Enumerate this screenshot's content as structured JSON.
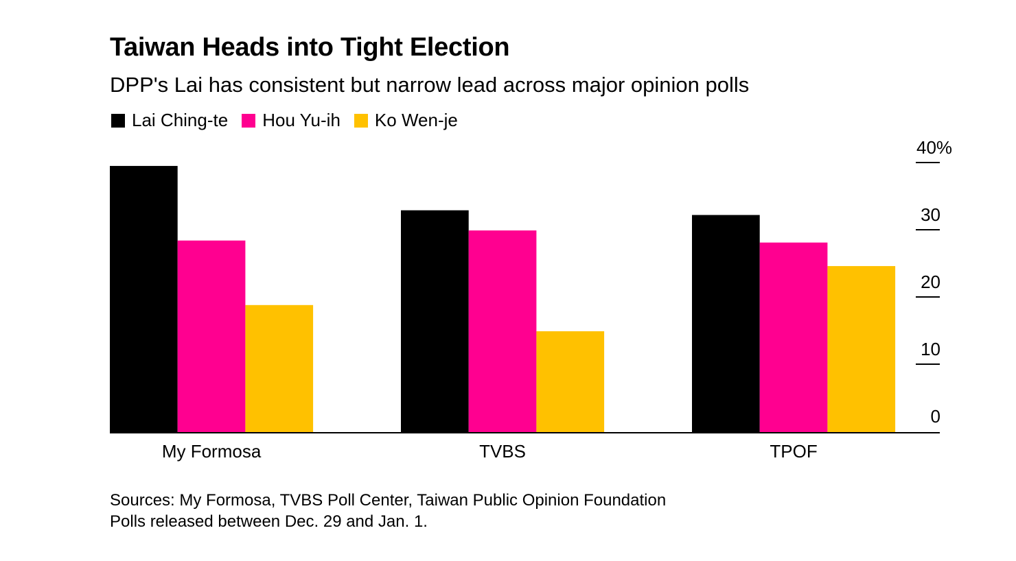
{
  "header": {
    "title": "Taiwan Heads into Tight Election",
    "subtitle": "DPP's Lai has consistent but narrow lead across major opinion polls"
  },
  "legend": {
    "items": [
      {
        "label": "Lai Ching-te",
        "color": "#000000"
      },
      {
        "label": "Hou Yu-ih",
        "color": "#ff0090"
      },
      {
        "label": "Ko Wen-je",
        "color": "#ffc100"
      }
    ]
  },
  "footer": {
    "sources": "Sources: My Formosa, TVBS Poll Center, Taiwan Public Opinion Foundation",
    "note": "Polls released between Dec. 29 and Jan. 1."
  },
  "chart_data": {
    "type": "bar",
    "categories": [
      "My Formosa",
      "TVBS",
      "TPOF"
    ],
    "series": [
      {
        "name": "Lai Ching-te",
        "color": "#000000",
        "values": [
          39.7,
          33.1,
          32.4
        ]
      },
      {
        "name": "Hou Yu-ih",
        "color": "#ff0090",
        "values": [
          28.6,
          30.1,
          28.3
        ]
      },
      {
        "name": "Ko Wen-je",
        "color": "#ffc100",
        "values": [
          19.0,
          15.1,
          24.8
        ]
      }
    ],
    "ylim": [
      0,
      40
    ],
    "yticks": [
      0,
      10,
      20,
      30,
      40
    ],
    "ytick_labels": [
      "0",
      "10",
      "20",
      "30",
      "40%"
    ],
    "y_axis_position": "right",
    "grid": false,
    "legend_position": "top-left"
  }
}
